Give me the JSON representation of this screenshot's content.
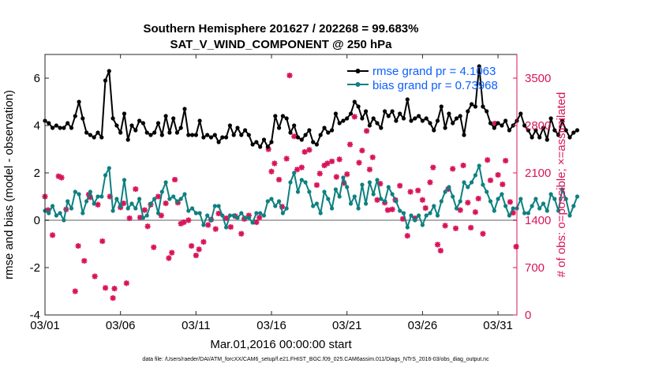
{
  "colors": {
    "rmse": "#000000",
    "bias": "#0e8080",
    "obs": "#d8145a",
    "zero": "#b0b0b0",
    "legend_text": "#0b5fff"
  },
  "chart_data": {
    "type": "line",
    "title": "Southern Hemisphere 201627 / 202268 = 99.683%",
    "subtitle": "SAT_V_WIND_COMPONENT @ 250 hPa",
    "xlabel": "Mar.01,2016 00:00:00 start",
    "ylabel": "rmse and bias (model - observation)",
    "y2label": "# of obs: o=possible; ×=assimilated",
    "footnote": "data file: /Users/raeder/DAI/ATM_forcXX/CAM6_setup/f.e21.FHIST_BGC.f09_025.CAM6assim.011/Diags_NTrS_2016-03/obs_diag_output.nc",
    "xlim": [
      0,
      31.25
    ],
    "ylim": [
      -4,
      7
    ],
    "y2lim": [
      0,
      3850
    ],
    "x_ticks": [
      0,
      5,
      10,
      15,
      20,
      25,
      30
    ],
    "x_tick_labels": [
      "03/01",
      "03/06",
      "03/11",
      "03/16",
      "03/21",
      "03/26",
      "03/31"
    ],
    "y_ticks": [
      -4,
      -2,
      0,
      2,
      4,
      6
    ],
    "y_tick_labels": [
      "-4",
      "-2",
      "0",
      "2",
      "4",
      "6"
    ],
    "y2_ticks": [
      0,
      700,
      1400,
      2100,
      2800,
      3500
    ],
    "y2_tick_labels": [
      "0",
      "700",
      "1400",
      "2100",
      "2800",
      "3500"
    ],
    "legend": {
      "position": "top-right",
      "entries": [
        "rmse grand pr = 4.1063",
        "bias grand pr = 0.73968"
      ]
    },
    "series": [
      {
        "name": "rmse",
        "x_start": 0,
        "x_step": 0.25,
        "values": [
          4.2,
          4.1,
          3.9,
          4.0,
          3.9,
          3.9,
          4.1,
          3.9,
          4.4,
          5.0,
          4.3,
          3.7,
          3.6,
          3.5,
          3.7,
          3.5,
          5.9,
          6.3,
          4.3,
          4.0,
          3.7,
          4.5,
          3.4,
          4.0,
          3.8,
          4.2,
          4.1,
          3.7,
          3.6,
          3.7,
          4.1,
          3.6,
          4.4,
          3.7,
          4.3,
          3.7,
          3.9,
          4.7,
          3.6,
          3.6,
          3.6,
          4.2,
          3.5,
          3.6,
          3.5,
          3.6,
          3.3,
          3.5,
          3.5,
          4.0,
          3.6,
          3.9,
          3.6,
          3.8,
          3.6,
          3.2,
          3.3,
          3.1,
          3.4,
          3.1,
          3.3,
          4.4,
          3.9,
          4.4,
          4.3,
          3.7,
          4.0,
          3.5,
          3.4,
          3.6,
          3.8,
          3.3,
          3.2,
          3.6,
          3.9,
          3.7,
          3.8,
          4.5,
          4.1,
          4.2,
          4.3,
          4.5,
          5.0,
          4.8,
          4.3,
          4.6,
          4.0,
          4.3,
          4.1,
          3.9,
          4.6,
          4.4,
          4.6,
          4.2,
          4.5,
          4.3,
          5.1,
          4.2,
          4.3,
          4.4,
          4.2,
          4.3,
          4.1,
          3.8,
          4.2,
          4.8,
          3.9,
          4.5,
          4.1,
          4.3,
          4.4,
          3.6,
          4.6,
          4.9,
          4.8,
          6.5,
          4.8,
          4.6,
          4.1,
          3.9,
          4.1,
          4.0,
          4.2,
          3.8,
          4.0,
          4.2,
          4.5,
          4.0,
          3.8,
          3.5,
          3.8,
          3.5,
          3.9,
          3.4,
          4.3,
          3.8,
          3.6,
          4.2,
          3.8,
          3.5,
          3.7,
          3.8
        ]
      },
      {
        "name": "bias",
        "x_start": 0,
        "x_step": 0.25,
        "values": [
          0.4,
          0.3,
          0.6,
          0.2,
          0.3,
          0.0,
          0.8,
          0.5,
          1.2,
          1.1,
          0.3,
          0.8,
          1.2,
          0.7,
          1.0,
          1.0,
          1.9,
          2.2,
          0.4,
          0.9,
          0.6,
          1.7,
          0.5,
          0.7,
          0.5,
          0.9,
          0.1,
          0.2,
          0.7,
          0.9,
          0.3,
          1.2,
          1.6,
          0.9,
          1.0,
          0.8,
          0.9,
          1.1,
          0.4,
          0.5,
          0.3,
          0.3,
          -0.2,
          0.2,
          0.0,
          0.6,
          0.6,
          0.2,
          -0.3,
          0.2,
          0.2,
          0.1,
          0.3,
          0.1,
          0.1,
          -0.1,
          0.3,
          0.3,
          0.2,
          0.8,
          0.9,
          0.6,
          0.8,
          0.3,
          0.5,
          1.6,
          2.0,
          1.2,
          1.7,
          1.6,
          1.2,
          0.6,
          0.7,
          0.3,
          1.2,
          0.9,
          0.5,
          1.3,
          1.0,
          1.8,
          1.4,
          0.7,
          1.0,
          0.5,
          1.5,
          0.7,
          1.6,
          1.1,
          1.7,
          0.9,
          0.8,
          1.4,
          1.1,
          0.8,
          0.4,
          0.3,
          -0.3,
          0.2,
          0.0,
          0.2,
          -0.2,
          0.2,
          0.3,
          0.6,
          0.2,
          0.8,
          1.2,
          1.4,
          1.0,
          0.5,
          0.8,
          1.6,
          1.4,
          1.6,
          1.9,
          2.3,
          1.5,
          1.2,
          0.8,
          0.4,
          0.9,
          1.1,
          0.6,
          0.2,
          0.5,
          0.5,
          0.9,
          0.3,
          0.3,
          0.6,
          0.9,
          0.5,
          0.7,
          0.4,
          1.1,
          0.9,
          0.4,
          1.3,
          0.9,
          0.2,
          0.6,
          1.0
        ]
      }
    ],
    "obs_possible": [
      {
        "x": 0.0,
        "y": 1750
      },
      {
        "x": 0.2,
        "y": 1550
      },
      {
        "x": 0.5,
        "y": 1180
      },
      {
        "x": 0.9,
        "y": 2050
      },
      {
        "x": 1.1,
        "y": 2030
      },
      {
        "x": 1.4,
        "y": 1560
      },
      {
        "x": 2.0,
        "y": 350
      },
      {
        "x": 2.2,
        "y": 1020
      },
      {
        "x": 2.6,
        "y": 800
      },
      {
        "x": 2.9,
        "y": 1780
      },
      {
        "x": 3.0,
        "y": 1740
      },
      {
        "x": 3.3,
        "y": 570
      },
      {
        "x": 3.5,
        "y": 1630
      },
      {
        "x": 3.8,
        "y": 1090
      },
      {
        "x": 4.0,
        "y": 400
      },
      {
        "x": 4.3,
        "y": 1750
      },
      {
        "x": 4.5,
        "y": 250
      },
      {
        "x": 4.6,
        "y": 390
      },
      {
        "x": 5.0,
        "y": 1590
      },
      {
        "x": 5.2,
        "y": 1650
      },
      {
        "x": 5.4,
        "y": 470
      },
      {
        "x": 5.6,
        "y": 1430
      },
      {
        "x": 6.0,
        "y": 1860
      },
      {
        "x": 6.3,
        "y": 1440
      },
      {
        "x": 6.6,
        "y": 1550
      },
      {
        "x": 6.8,
        "y": 1310
      },
      {
        "x": 7.0,
        "y": 1630
      },
      {
        "x": 7.2,
        "y": 1000
      },
      {
        "x": 7.5,
        "y": 1750
      },
      {
        "x": 7.7,
        "y": 1470
      },
      {
        "x": 8.0,
        "y": 1650
      },
      {
        "x": 8.2,
        "y": 840
      },
      {
        "x": 8.4,
        "y": 920
      },
      {
        "x": 8.6,
        "y": 2000
      },
      {
        "x": 8.8,
        "y": 1660
      },
      {
        "x": 9.0,
        "y": 1350
      },
      {
        "x": 9.2,
        "y": 1370
      },
      {
        "x": 9.5,
        "y": 1400
      },
      {
        "x": 9.7,
        "y": 1020
      },
      {
        "x": 10.0,
        "y": 880
      },
      {
        "x": 10.2,
        "y": 970
      },
      {
        "x": 10.5,
        "y": 1080
      },
      {
        "x": 10.8,
        "y": 1330
      },
      {
        "x": 11.0,
        "y": 1410
      },
      {
        "x": 11.3,
        "y": 1270
      },
      {
        "x": 11.5,
        "y": 1500
      },
      {
        "x": 12.0,
        "y": 1430
      },
      {
        "x": 12.3,
        "y": 1300
      },
      {
        "x": 12.6,
        "y": 1460
      },
      {
        "x": 13.0,
        "y": 1200
      },
      {
        "x": 13.2,
        "y": 1420
      },
      {
        "x": 13.5,
        "y": 1470
      },
      {
        "x": 14.0,
        "y": 1370
      },
      {
        "x": 14.2,
        "y": 1440
      },
      {
        "x": 14.8,
        "y": 2450
      },
      {
        "x": 15.0,
        "y": 2120
      },
      {
        "x": 15.2,
        "y": 2240
      },
      {
        "x": 15.5,
        "y": 2000
      },
      {
        "x": 15.7,
        "y": 1600
      },
      {
        "x": 16.0,
        "y": 2310
      },
      {
        "x": 16.2,
        "y": 3540
      },
      {
        "x": 16.5,
        "y": 2640
      },
      {
        "x": 16.7,
        "y": 2150
      },
      {
        "x": 17.0,
        "y": 2180
      },
      {
        "x": 17.2,
        "y": 2410
      },
      {
        "x": 17.5,
        "y": 2440
      },
      {
        "x": 18.0,
        "y": 1920
      },
      {
        "x": 18.2,
        "y": 2090
      },
      {
        "x": 18.5,
        "y": 2210
      },
      {
        "x": 18.7,
        "y": 2240
      },
      {
        "x": 19.0,
        "y": 2270
      },
      {
        "x": 19.3,
        "y": 2040
      },
      {
        "x": 19.5,
        "y": 2300
      },
      {
        "x": 19.8,
        "y": 1950
      },
      {
        "x": 20.0,
        "y": 2080
      },
      {
        "x": 20.2,
        "y": 2520
      },
      {
        "x": 20.5,
        "y": 2930
      },
      {
        "x": 20.8,
        "y": 2250
      },
      {
        "x": 21.0,
        "y": 2430
      },
      {
        "x": 21.3,
        "y": 2720
      },
      {
        "x": 21.5,
        "y": 2150
      },
      {
        "x": 21.7,
        "y": 2330
      },
      {
        "x": 22.0,
        "y": 1700
      },
      {
        "x": 22.2,
        "y": 1940
      },
      {
        "x": 22.5,
        "y": 1660
      },
      {
        "x": 22.7,
        "y": 1550
      },
      {
        "x": 23.0,
        "y": 1560
      },
      {
        "x": 23.2,
        "y": 1700
      },
      {
        "x": 23.5,
        "y": 1910
      },
      {
        "x": 23.7,
        "y": 1420
      },
      {
        "x": 24.0,
        "y": 1170
      },
      {
        "x": 24.2,
        "y": 1820
      },
      {
        "x": 24.5,
        "y": 1430
      },
      {
        "x": 24.7,
        "y": 1840
      },
      {
        "x": 25.0,
        "y": 1700
      },
      {
        "x": 25.2,
        "y": 1580
      },
      {
        "x": 25.5,
        "y": 1960
      },
      {
        "x": 25.7,
        "y": 2180
      },
      {
        "x": 26.0,
        "y": 1040
      },
      {
        "x": 26.2,
        "y": 950
      },
      {
        "x": 26.5,
        "y": 1320
      },
      {
        "x": 26.7,
        "y": 1860
      },
      {
        "x": 27.0,
        "y": 2160
      },
      {
        "x": 27.2,
        "y": 1280
      },
      {
        "x": 27.5,
        "y": 1550
      },
      {
        "x": 27.7,
        "y": 2210
      },
      {
        "x": 28.0,
        "y": 1660
      },
      {
        "x": 28.2,
        "y": 1290
      },
      {
        "x": 28.5,
        "y": 1520
      },
      {
        "x": 28.7,
        "y": 1720
      },
      {
        "x": 29.0,
        "y": 1200
      },
      {
        "x": 29.3,
        "y": 2290
      },
      {
        "x": 29.5,
        "y": 1990
      },
      {
        "x": 29.8,
        "y": 2830
      },
      {
        "x": 30.0,
        "y": 2070
      },
      {
        "x": 30.3,
        "y": 1930
      },
      {
        "x": 30.5,
        "y": 2280
      },
      {
        "x": 30.8,
        "y": 1670
      },
      {
        "x": 31.0,
        "y": 1510
      },
      {
        "x": 31.2,
        "y": 1010
      }
    ]
  }
}
